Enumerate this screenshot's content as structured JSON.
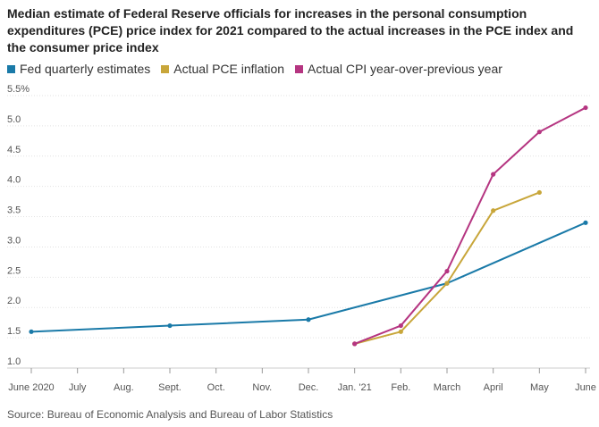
{
  "colors": {
    "fed": "#1a7aa8",
    "pce": "#c8a63a",
    "cpi": "#b53581",
    "grid": "#e2e2e2",
    "axis": "#cccccc"
  },
  "chart_data": {
    "type": "line",
    "title": "Median estimate of Federal Reserve officials for increases in the personal consumption expenditures (PCE) price index for 2021 compared to the actual increases in the PCE index and the consumer price index",
    "source": "Source: Bureau of Economic Analysis and Bureau of Labor Statistics",
    "categories": [
      "June 2020",
      "July",
      "Aug.",
      "Sept.",
      "Oct.",
      "Nov.",
      "Dec.",
      "Jan. '21",
      "Feb.",
      "March",
      "April",
      "May",
      "June"
    ],
    "y_ticks": [
      "1.0",
      "1.5",
      "2.0",
      "2.5",
      "3.0",
      "3.5",
      "4.0",
      "4.5",
      "5.0",
      "5.5%"
    ],
    "ylim": [
      1.0,
      5.5
    ],
    "legend_position": "top-left",
    "series": [
      {
        "name": "Fed quarterly estimates",
        "color_key": "fed",
        "markers": true,
        "points": [
          [
            0,
            1.6
          ],
          [
            3,
            1.7
          ],
          [
            6,
            1.8
          ],
          [
            9,
            2.4
          ],
          [
            12,
            3.4
          ]
        ]
      },
      {
        "name": "Actual PCE inflation",
        "color_key": "pce",
        "markers": true,
        "points": [
          [
            7,
            1.4
          ],
          [
            8,
            1.6
          ],
          [
            9,
            2.4
          ],
          [
            10,
            3.6
          ],
          [
            11,
            3.9
          ]
        ]
      },
      {
        "name": "Actual CPI year-over-previous year",
        "color_key": "cpi",
        "markers": true,
        "points": [
          [
            7,
            1.4
          ],
          [
            8,
            1.7
          ],
          [
            9,
            2.6
          ],
          [
            10,
            4.2
          ],
          [
            11,
            4.9
          ],
          [
            12,
            5.3
          ]
        ]
      }
    ]
  }
}
